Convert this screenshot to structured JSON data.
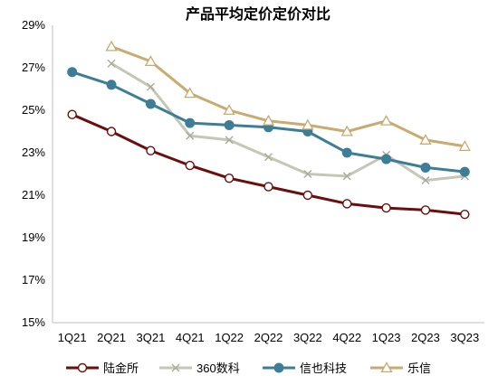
{
  "chart_data": {
    "type": "line",
    "title": "产品平均定价定价对比",
    "xlabel": "",
    "ylabel": "",
    "categories": [
      "1Q21",
      "2Q21",
      "3Q21",
      "4Q21",
      "1Q22",
      "2Q22",
      "3Q22",
      "4Q22",
      "1Q23",
      "2Q23",
      "3Q23"
    ],
    "ylim": [
      15,
      29
    ],
    "yticks": [
      15,
      17,
      19,
      21,
      23,
      25,
      27,
      29
    ],
    "ytick_labels": [
      "15%",
      "17%",
      "19%",
      "21%",
      "23%",
      "25%",
      "27%",
      "29%"
    ],
    "grid": false,
    "legend_position": "bottom",
    "series": [
      {
        "name": "陆金所",
        "color": "#6b0e0e",
        "marker": "circle-open",
        "values": [
          24.8,
          24.0,
          23.1,
          22.4,
          21.8,
          21.4,
          21.0,
          20.6,
          20.4,
          20.3,
          20.1
        ]
      },
      {
        "name": "360数科",
        "color": "#c5c7b6",
        "marker": "x",
        "values": [
          null,
          27.2,
          26.1,
          23.8,
          23.6,
          22.8,
          22.0,
          21.9,
          22.9,
          21.7,
          21.9
        ]
      },
      {
        "name": "信也科技",
        "color": "#3d7e96",
        "marker": "circle-filled",
        "values": [
          26.8,
          26.2,
          25.3,
          24.4,
          24.3,
          24.2,
          24.0,
          23.0,
          22.7,
          22.3,
          22.1
        ]
      },
      {
        "name": "乐信",
        "color": "#c9ab72",
        "marker": "triangle-open",
        "values": [
          null,
          28.0,
          27.3,
          25.8,
          25.0,
          24.5,
          24.3,
          24.0,
          24.5,
          23.6,
          23.3
        ]
      }
    ]
  }
}
